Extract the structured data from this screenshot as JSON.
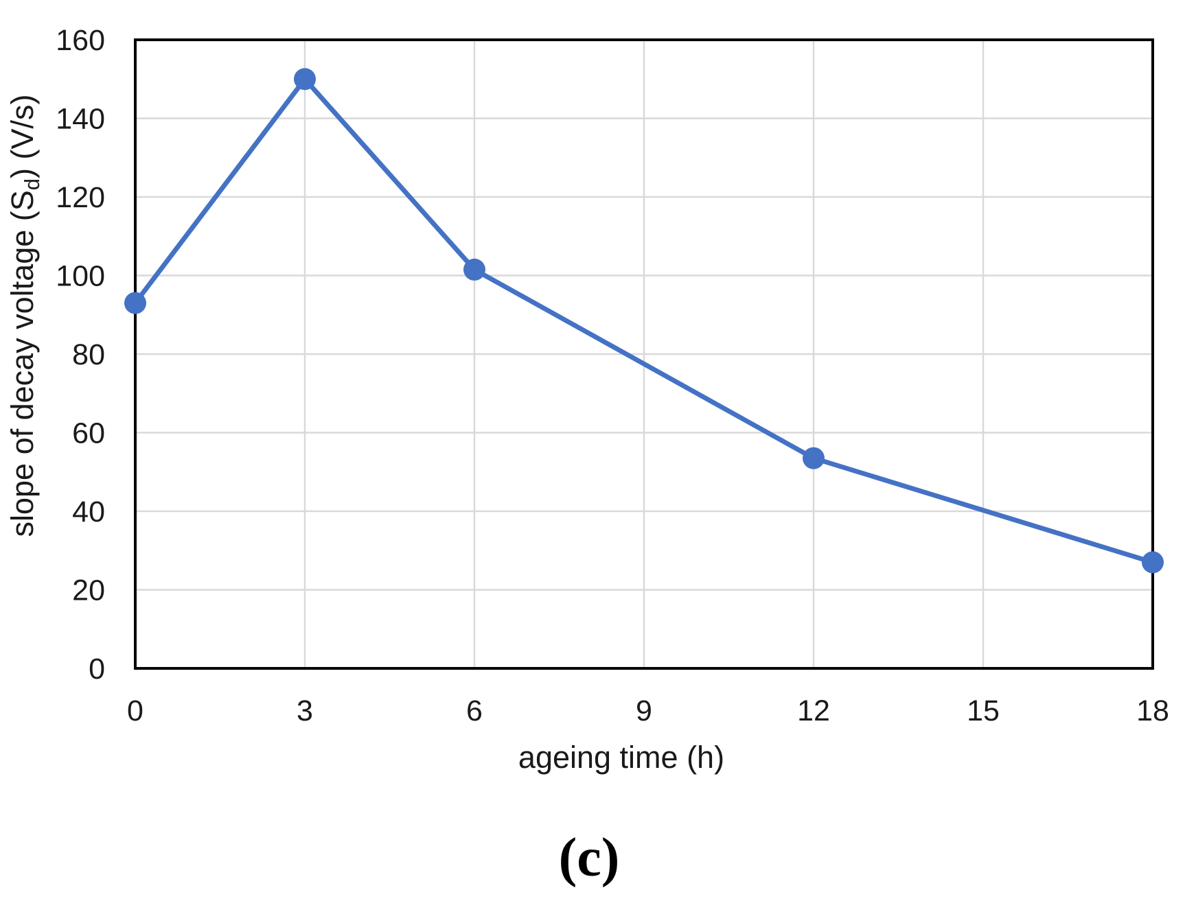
{
  "caption": "(c)",
  "chart_data": {
    "type": "line",
    "x": [
      0,
      3,
      6,
      12,
      18
    ],
    "values": [
      93,
      150,
      101.5,
      53.5,
      27
    ],
    "title": "",
    "xlabel": "ageing time (h)",
    "ylabel_text": "slope of decay voltage (Sd) (V/s)",
    "ylabel": {
      "pre": "slope of decay voltage (S",
      "sub": "d",
      "post": ") (V/s)"
    },
    "xticks": [
      0,
      3,
      6,
      9,
      12,
      15,
      18
    ],
    "yticks": [
      0,
      20,
      40,
      60,
      80,
      100,
      120,
      140,
      160
    ],
    "xlim": [
      0,
      18
    ],
    "ylim": [
      0,
      160
    ],
    "grid": true,
    "legend_position": "none",
    "line_color": "#4472C4",
    "marker_shape": "circle",
    "grid_color": "#D9D9D9",
    "axis_color": "#000000",
    "background_color": "#FFFFFF"
  }
}
